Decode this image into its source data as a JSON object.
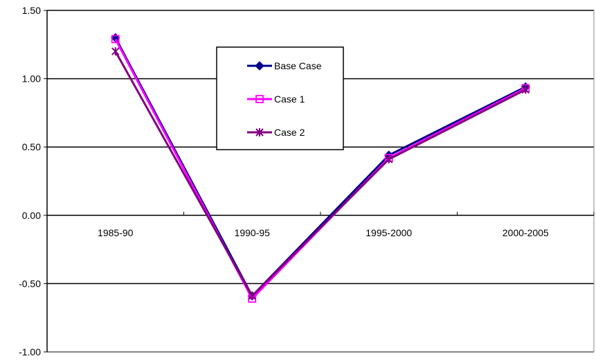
{
  "chart_data": {
    "type": "line",
    "title": "",
    "xlabel": "",
    "ylabel": "",
    "categories": [
      "1985-90",
      "1990-95",
      "1995-2000",
      "2000-2005"
    ],
    "ylim": [
      -1.0,
      1.5
    ],
    "yticks": [
      "1.50",
      "1.00",
      "0.50",
      "0.00",
      "-0.50",
      "-1.00"
    ],
    "grid": true,
    "legend_position": "top-center",
    "series": [
      {
        "name": "Base Case",
        "values": [
          1.3,
          -0.59,
          0.44,
          0.94
        ],
        "color": "#00008B",
        "marker": "diamond-filled"
      },
      {
        "name": "Case 1",
        "values": [
          1.29,
          -0.61,
          0.42,
          0.93
        ],
        "color": "#FF00FF",
        "marker": "square-open"
      },
      {
        "name": "Case 2",
        "values": [
          1.2,
          -0.59,
          0.41,
          0.92
        ],
        "color": "#800080",
        "marker": "star-x"
      }
    ]
  }
}
